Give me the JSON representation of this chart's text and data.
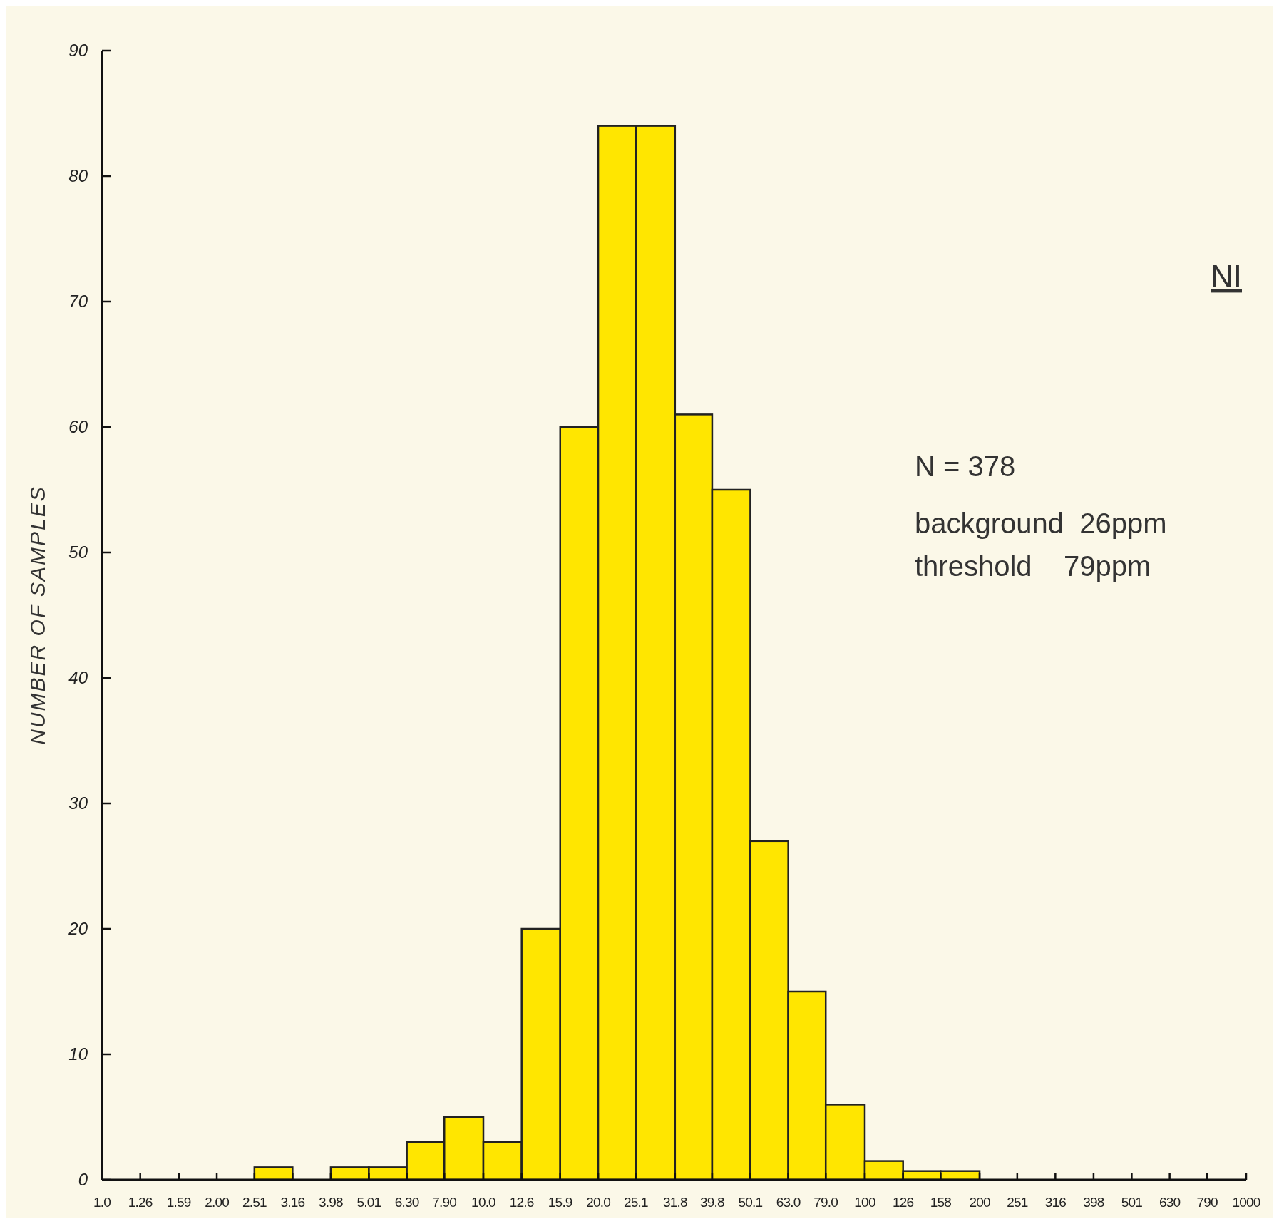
{
  "chart_data": {
    "type": "histogram",
    "ylabel": "NUMBER OF SAMPLES",
    "bins": [
      2.51,
      3.16,
      3.98,
      5.01,
      6.3,
      7.9,
      10.0,
      12.6,
      15.9,
      20.0,
      25.1,
      31.8,
      39.8,
      50.1,
      63.0,
      79.0,
      100,
      126,
      158,
      200
    ],
    "values": [
      1,
      0,
      1,
      1,
      3,
      5,
      3,
      20,
      60,
      84,
      84,
      61,
      55,
      27,
      15,
      6,
      1.5,
      0.7,
      0.7
    ],
    "color": "#ffe600",
    "log": "x",
    "xlim": [
      1,
      1000
    ],
    "ylim": [
      0,
      90
    ],
    "xticks": [
      {
        "value": 1,
        "label": "1.0"
      },
      1.26,
      1.59,
      {
        "value": 2,
        "label": "2.00"
      },
      2.51,
      3.16,
      3.98,
      5.01,
      {
        "value": 6.3,
        "label": "6.30"
      },
      {
        "value": 7.9,
        "label": "7.90"
      },
      {
        "value": 10,
        "label": "10.0"
      },
      12.6,
      15.9,
      {
        "value": 20,
        "label": "20.0"
      },
      25.1,
      31.8,
      39.8,
      50.1,
      {
        "value": 63,
        "label": "63.0"
      },
      {
        "value": 79,
        "label": "79.0"
      },
      100,
      126,
      158,
      200,
      251,
      316,
      398,
      501,
      630,
      790,
      1000
    ],
    "yticks": [
      0,
      10,
      20,
      30,
      40,
      50,
      60,
      70,
      80,
      90
    ],
    "annotations": [
      "NI",
      "N = 378",
      "background  26ppm",
      "threshold    79ppm"
    ],
    "grid": false
  }
}
